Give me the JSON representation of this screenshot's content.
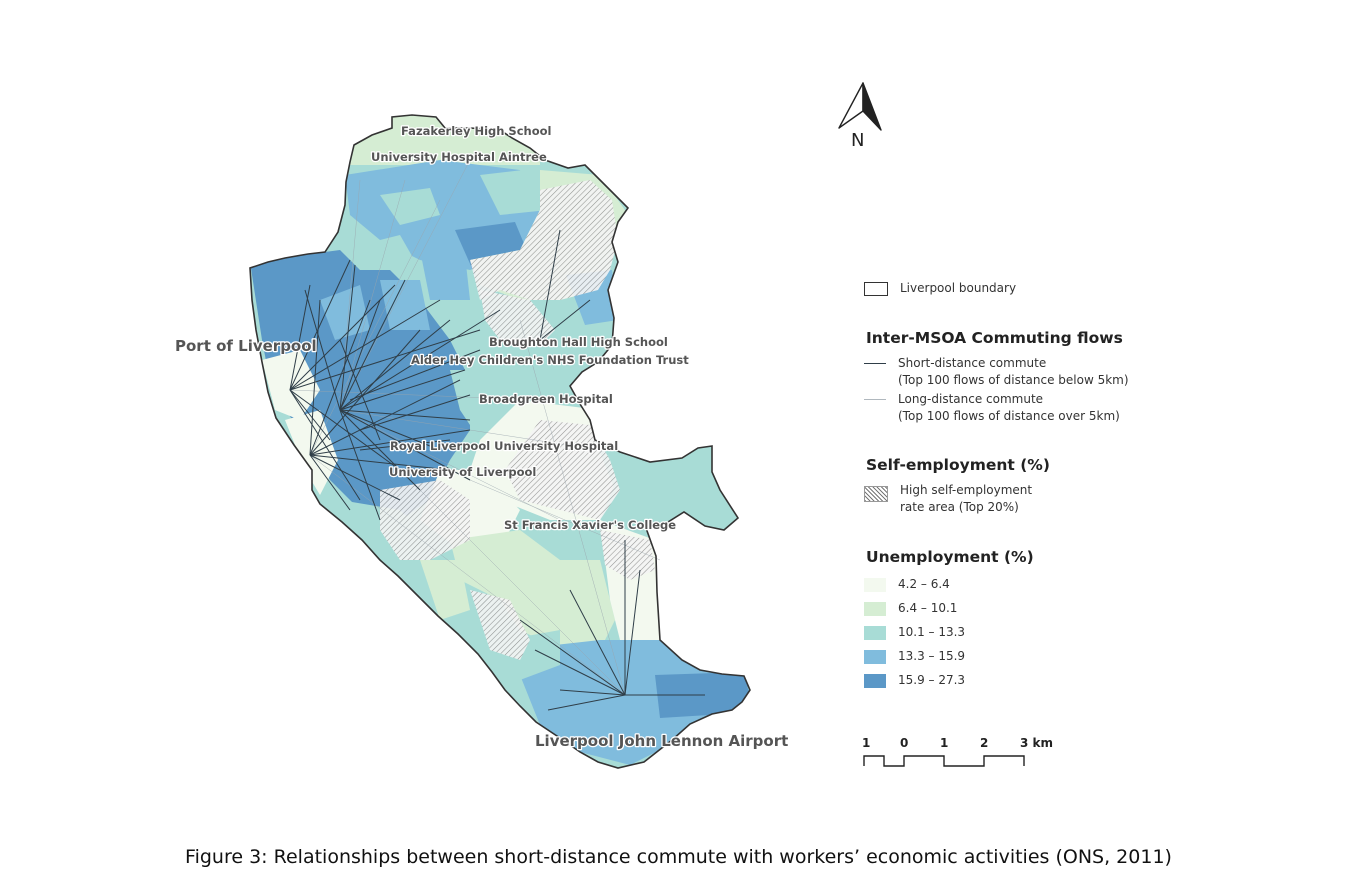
{
  "map": {
    "north_label": "N",
    "places": [
      {
        "name": "Fazakerley High School",
        "size": "small"
      },
      {
        "name": "University Hospital Aintree",
        "size": "small"
      },
      {
        "name": "Port of Liverpool",
        "size": "big"
      },
      {
        "name": "Broughton Hall High School",
        "size": "small"
      },
      {
        "name": "Alder Hey Children's NHS Foundation Trust",
        "size": "small"
      },
      {
        "name": "Broadgreen Hospital",
        "size": "small"
      },
      {
        "name": "Royal Liverpool University Hospital",
        "size": "small"
      },
      {
        "name": "University of Liverpool",
        "size": "small"
      },
      {
        "name": "St Francis Xavier's College",
        "size": "small"
      },
      {
        "name": "Liverpool John Lennon Airport",
        "size": "big"
      }
    ]
  },
  "legend": {
    "boundary_label": "Liverpool boundary",
    "flows_heading": "Inter-MSOA Commuting flows",
    "short_label_1": "Short-distance commute",
    "short_label_2": "(Top 100 flows of distance below 5km)",
    "long_label_1": "Long-distance commute",
    "long_label_2": "(Top 100 flows of distance over 5km)",
    "self_heading": "Self-employment (%)",
    "self_label_1": "High self-employment",
    "self_label_2": "rate area (Top 20%)",
    "unemp_heading": "Unemployment (%)",
    "classes": [
      {
        "label": "4.2 – 6.4",
        "color": "#f3f9ef"
      },
      {
        "label": "6.4 – 10.1",
        "color": "#d5edd3"
      },
      {
        "label": "10.1 – 13.3",
        "color": "#a8dcd6"
      },
      {
        "label": "13.3 – 15.9",
        "color": "#80bcdd"
      },
      {
        "label": "15.9 – 27.3",
        "color": "#5b98c7"
      }
    ]
  },
  "scalebar": {
    "labels": [
      "1",
      "0",
      "1",
      "2",
      "3 km"
    ]
  },
  "caption": "Figure 3: Relationships between short-distance commute with workers’ economic activities (ONS, 2011)"
}
